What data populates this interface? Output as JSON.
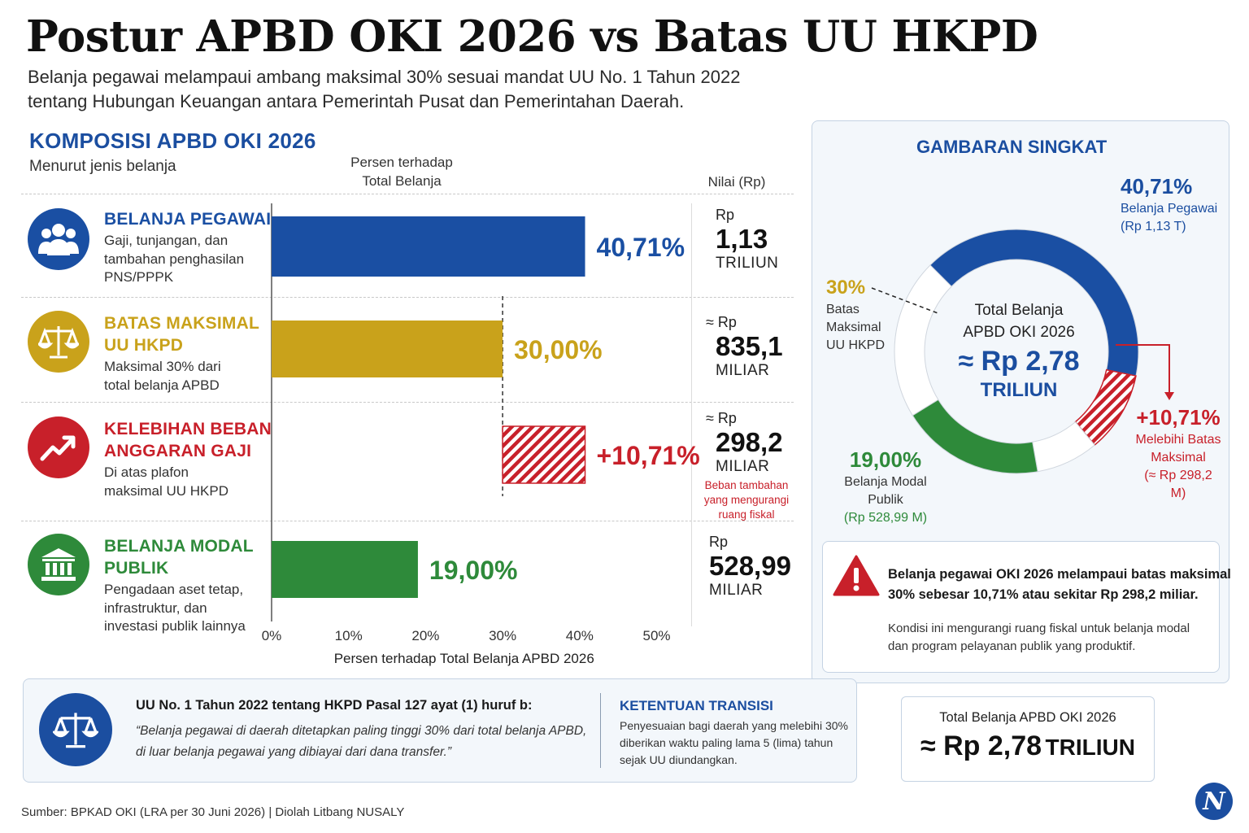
{
  "title": "Postur APBD OKI 2026 vs Batas UU HKPD",
  "subtitle_line1": "Belanja pegawai melampaui ambang maksimal 30% sesuai mandat UU No. 1 Tahun 2022",
  "subtitle_line2": "tentang Hubungan Keuangan antara Pemerintah Pusat dan Pemerintahan Daerah.",
  "section": {
    "title": "KOMPOSISI APBD OKI 2026",
    "subtitle": "Menurut jenis belanja",
    "col_percent_line1": "Persen terhadap",
    "col_percent_line2": "Total Belanja",
    "col_value": "Nilai (Rp)"
  },
  "rows": [
    {
      "title1": "BELANJA PEGAWAI",
      "title2": "",
      "desc1": "Gaji, tunjangan, dan",
      "desc2": "tambahan penghasilan",
      "desc3": "PNS/PPPK",
      "pct_label": "40,71%",
      "val_prefix": "Rp",
      "val_num": "1,13",
      "val_unit": "TRILIUN",
      "color": "#1a4fa3"
    },
    {
      "title1": "BATAS MAKSIMAL",
      "title2": "UU HKPD",
      "desc1": "Maksimal 30% dari",
      "desc2": "total belanja APBD",
      "desc3": "",
      "pct_label": "30,00%",
      "val_prefix": "≈ Rp",
      "val_num": "835,1",
      "val_unit": "MILIAR",
      "color": "#c9a21b"
    },
    {
      "title1": "KELEBIHAN BEBAN",
      "title2": "ANGGARAN GAJI",
      "desc1": "Di atas plafon",
      "desc2": "maksimal UU HKPD",
      "desc3": "",
      "pct_label": "+10,71%",
      "val_prefix": "≈ Rp",
      "val_num": "298,2",
      "val_unit": "MILIAR",
      "note1": "Beban tambahan",
      "note2": "yang mengurangi",
      "note3": "ruang fiskal",
      "color": "#c8202a"
    },
    {
      "title1": "BELANJA MODAL",
      "title2": "PUBLIK",
      "desc1": "Pengadaan aset tetap,",
      "desc2": "infrastruktur, dan",
      "desc3": "investasi publik lainnya",
      "pct_label": "19,00%",
      "val_prefix": "Rp",
      "val_num": "528,99",
      "val_unit": "MILIAR",
      "color": "#2e8a3a"
    }
  ],
  "chart_data": [
    {
      "type": "bar",
      "orientation": "horizontal",
      "categories": [
        "BELANJA PEGAWAI",
        "BATAS MAKSIMAL UU HKPD",
        "KELEBIHAN BEBAN ANGGARAN GAJI",
        "BELANJA MODAL PUBLIK"
      ],
      "values": [
        40.71,
        30.0,
        10.71,
        19.0
      ],
      "bar_starts": [
        0,
        0,
        30,
        0
      ],
      "xlabel": "Persen terhadap Total Belanja APBD 2026",
      "xlim": [
        0,
        50
      ],
      "xticks": [
        "0%",
        "10%",
        "20%",
        "30%",
        "40%",
        "50%"
      ],
      "reference_line": 30,
      "colors": [
        "#1a4fa3",
        "#c9a21b",
        "#c8202a",
        "#2e8a3a"
      ]
    },
    {
      "type": "pie",
      "variant": "donut",
      "slices": [
        {
          "label": "Belanja Pegawai",
          "value": 40.71,
          "color": "#1a4fa3"
        },
        {
          "label": "Melebihi Batas Maksimal",
          "value": 10.71,
          "color": "#c8202a",
          "hatched": true
        },
        {
          "label": "",
          "value": 8.29,
          "color": "#ffffff"
        },
        {
          "label": "Belanja Modal Publik",
          "value": 19.0,
          "color": "#2e8a3a"
        },
        {
          "label": "",
          "value": 21.29,
          "color": "#ffffff"
        }
      ],
      "center_line1": "Total Belanja",
      "center_line2": "APBD OKI 2026",
      "center_value": "≈ Rp 2,78",
      "center_unit": "TRILIUN"
    }
  ],
  "panel": {
    "title": "GAMBARAN SINGKAT",
    "pegawai_pct": "40,71%",
    "pegawai_l1": "Belanja Pegawai",
    "pegawai_l2": "(Rp 1,13 T)",
    "batas_pct": "30%",
    "batas_l1": "Batas",
    "batas_l2": "Maksimal",
    "batas_l3": "UU HKPD",
    "lebih_pct": "+10,71%",
    "lebih_l1": "Melebihi Batas",
    "lebih_l2": "Maksimal",
    "lebih_l3": "(≈ Rp 298,2 M)",
    "modal_pct": "19,00%",
    "modal_l1": "Belanja Modal Publik",
    "modal_l2": "(Rp 528,99 M)"
  },
  "warning": {
    "line1": "Belanja pegawai OKI 2026 melampaui batas maksimal",
    "line2": "30% sebesar 10,71% atau sekitar Rp 298,2 miliar.",
    "line3": "Kondisi ini mengurangi ruang fiskal untuk belanja modal",
    "line4": "dan program pelayanan publik yang produktif."
  },
  "law": {
    "heading": "UU No. 1 Tahun 2022 tentang HKPD Pasal 127 ayat (1) huruf b:",
    "quote1": "“Belanja pegawai di daerah ditetapkan paling tinggi 30% dari total belanja APBD,",
    "quote2": "di luar belanja pegawai yang dibiayai dari dana transfer.”",
    "trans_title": "KETENTUAN TRANSISI",
    "trans1": "Penyesuaian bagi daerah yang melebihi 30%",
    "trans2": "diberikan waktu paling lama 5 (lima) tahun",
    "trans3": "sejak UU diundangkan."
  },
  "total": {
    "label": "Total Belanja APBD OKI 2026",
    "value": "≈ Rp 2,78",
    "unit": "TRILIUN"
  },
  "source": "Sumber: BPKAD OKI (LRA per 30 Juni 2026)  |  Diolah Litbang NUSALY",
  "logo": "N"
}
